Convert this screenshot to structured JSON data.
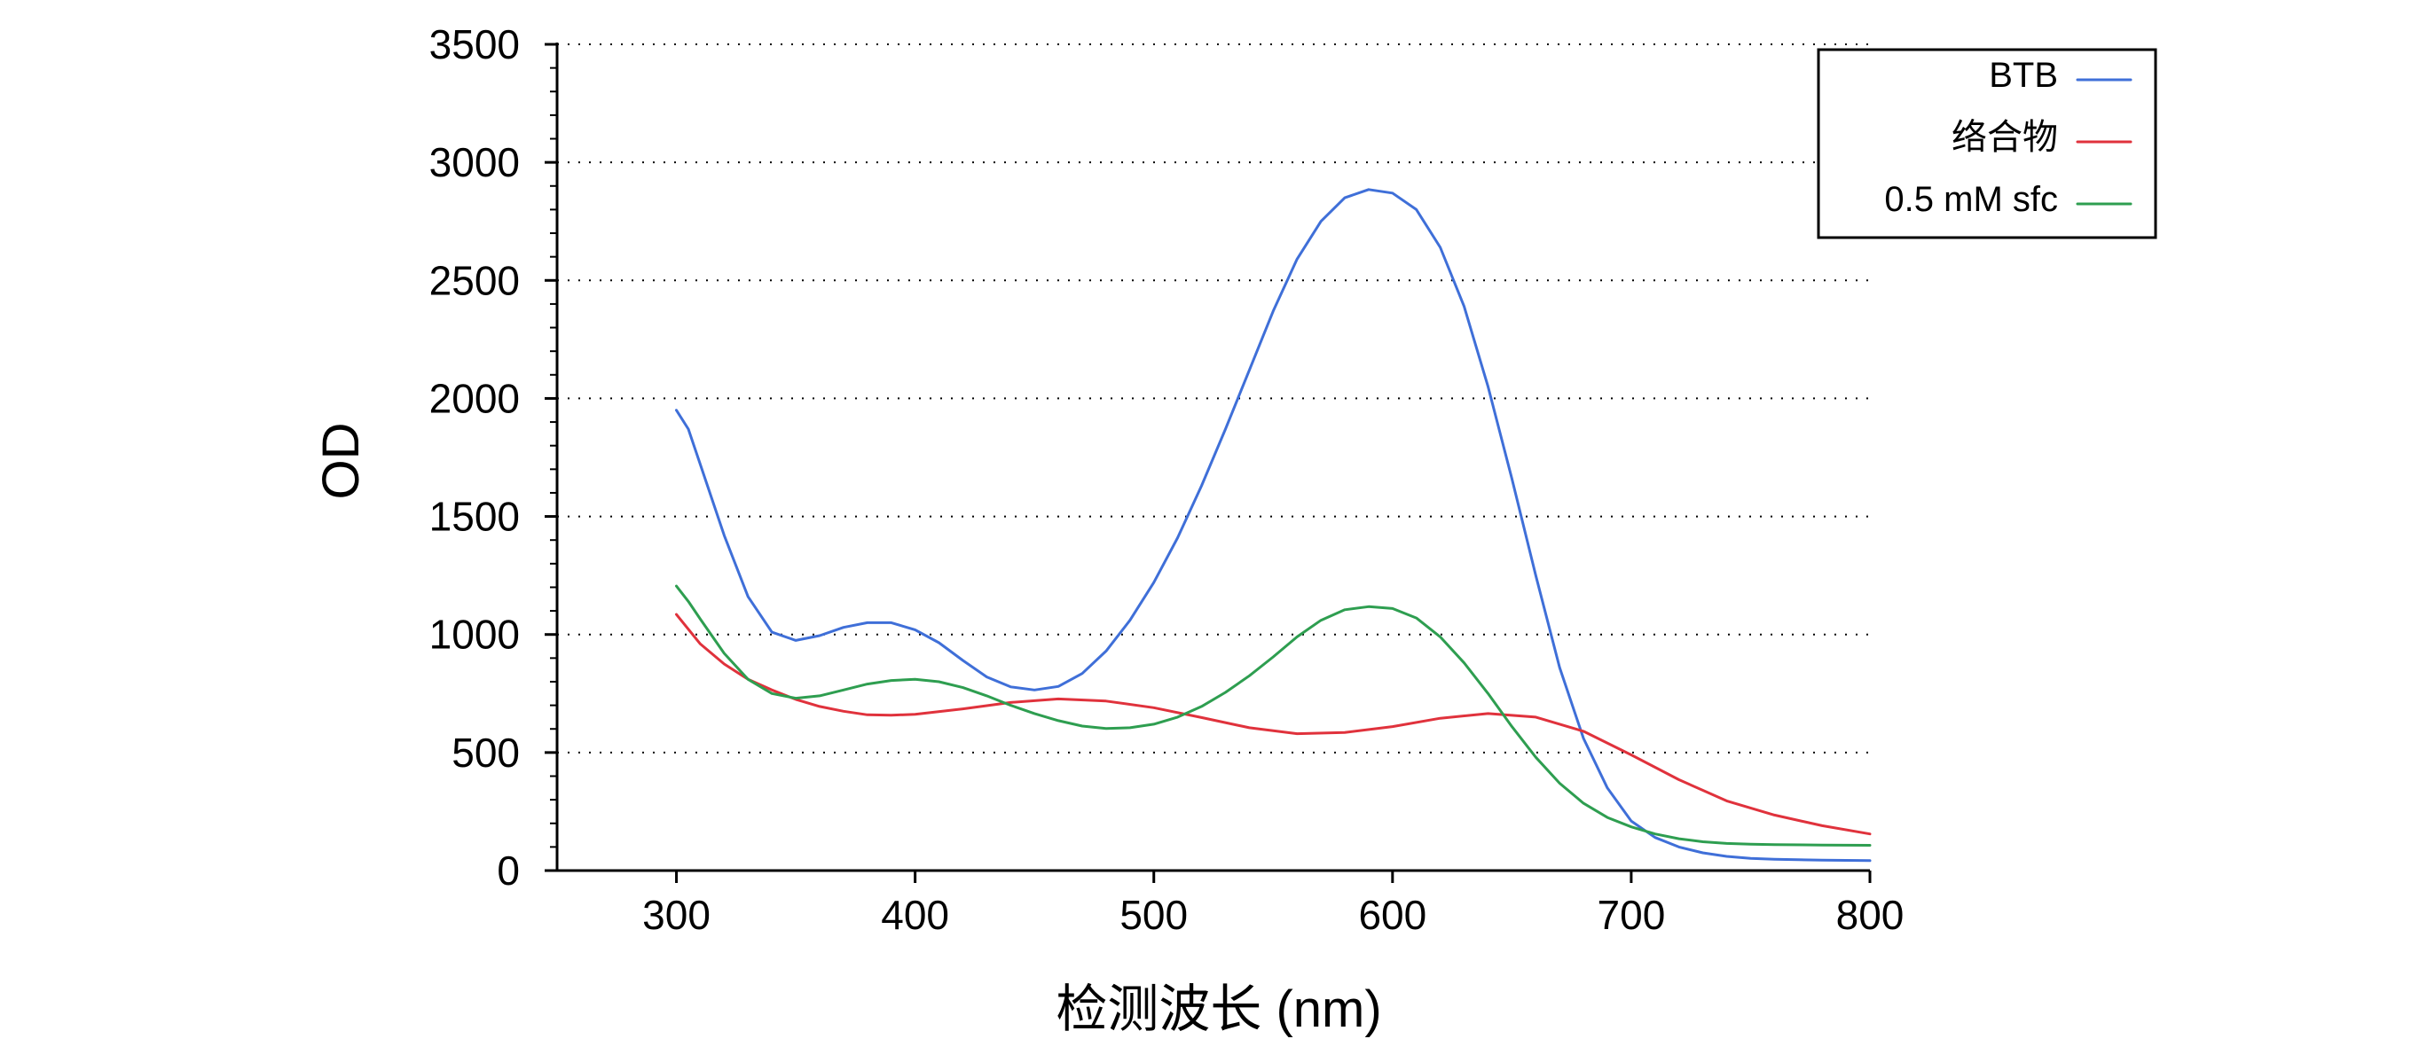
{
  "chart_data": {
    "type": "line",
    "title": "",
    "xlabel": "检测波长 (nm)",
    "ylabel": "OD",
    "xlim": [
      250,
      800
    ],
    "ylim": [
      0,
      3500
    ],
    "x_ticks": [
      300,
      400,
      500,
      600,
      700,
      800
    ],
    "y_ticks": [
      0,
      500,
      1000,
      1500,
      2000,
      2500,
      3000,
      3500
    ],
    "grid": "horizontal dotted",
    "legend_position": "top-right",
    "series": [
      {
        "name": "BTB",
        "color": "#3f6fd8",
        "x": [
          300,
          305,
          310,
          320,
          330,
          340,
          350,
          360,
          370,
          380,
          390,
          400,
          410,
          420,
          430,
          440,
          450,
          460,
          470,
          480,
          490,
          500,
          510,
          520,
          530,
          540,
          550,
          560,
          570,
          580,
          590,
          600,
          610,
          620,
          630,
          640,
          650,
          660,
          670,
          680,
          690,
          700,
          710,
          720,
          730,
          740,
          750,
          760,
          770,
          780,
          790,
          800
        ],
        "y": [
          1950,
          1870,
          1720,
          1420,
          1160,
          1010,
          975,
          995,
          1030,
          1050,
          1050,
          1020,
          965,
          890,
          820,
          778,
          765,
          780,
          835,
          930,
          1060,
          1220,
          1410,
          1630,
          1870,
          2120,
          2370,
          2590,
          2750,
          2850,
          2885,
          2870,
          2800,
          2640,
          2390,
          2050,
          1660,
          1250,
          860,
          560,
          350,
          210,
          140,
          100,
          75,
          60,
          52,
          48,
          46,
          44,
          43,
          42
        ]
      },
      {
        "name": "络合物",
        "color": "#e0323c",
        "x": [
          300,
          310,
          320,
          330,
          340,
          350,
          360,
          370,
          380,
          390,
          400,
          420,
          440,
          460,
          480,
          500,
          520,
          540,
          560,
          580,
          600,
          620,
          640,
          660,
          680,
          700,
          720,
          740,
          760,
          780,
          800
        ],
        "y": [
          1085,
          960,
          875,
          810,
          765,
          725,
          695,
          675,
          660,
          658,
          662,
          685,
          712,
          727,
          718,
          690,
          648,
          605,
          580,
          585,
          610,
          645,
          665,
          650,
          590,
          490,
          385,
          295,
          235,
          190,
          155
        ]
      },
      {
        "name": "0.5 mM sfc",
        "color": "#2e9e50",
        "x": [
          300,
          305,
          310,
          320,
          330,
          340,
          350,
          360,
          370,
          380,
          390,
          400,
          410,
          420,
          430,
          440,
          450,
          460,
          470,
          480,
          490,
          500,
          510,
          520,
          530,
          540,
          550,
          560,
          570,
          580,
          590,
          600,
          610,
          620,
          630,
          640,
          650,
          660,
          670,
          680,
          690,
          700,
          710,
          720,
          730,
          740,
          750,
          760,
          780,
          800
        ],
        "y": [
          1205,
          1140,
          1065,
          920,
          810,
          750,
          730,
          740,
          765,
          790,
          805,
          810,
          800,
          775,
          740,
          700,
          665,
          635,
          612,
          602,
          605,
          620,
          650,
          695,
          755,
          825,
          905,
          990,
          1060,
          1105,
          1118,
          1110,
          1070,
          990,
          880,
          750,
          610,
          480,
          370,
          285,
          225,
          185,
          155,
          135,
          122,
          115,
          112,
          110,
          108,
          107
        ]
      }
    ]
  }
}
